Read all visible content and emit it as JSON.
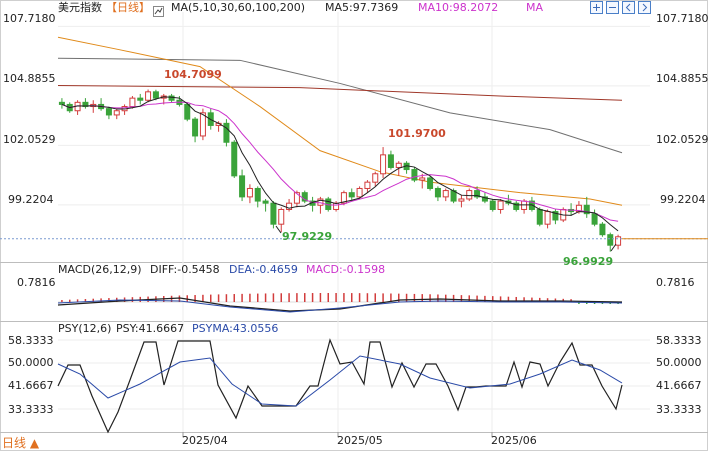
{
  "header": {
    "symbol": "美元指数",
    "period": "【日线】",
    "ma_label": "MA(5,10,30,60,100,200)",
    "ma5": "MA5:97.7369",
    "ma10": "MA10:98.2072",
    "ma_more": "MA"
  },
  "main_axis": {
    "left": [
      "107.7180",
      "104.8855",
      "102.0529",
      "99.2204"
    ],
    "right": [
      "107.7180",
      "104.8855",
      "102.0529",
      "99.2204"
    ]
  },
  "annotations": {
    "high1": "104.7099",
    "high2": "101.9700",
    "low1": "97.9229",
    "low2": "96.9929"
  },
  "macd": {
    "label": "MACD(26,12,9)",
    "diff": "DIFF:-0.5458",
    "dea": "DEA:-0.4659",
    "macd": "MACD:-0.1598",
    "axis": "0.7816"
  },
  "psy": {
    "label": "PSY(12,6)",
    "psy": "PSY:41.6667",
    "psyma": "PSYMA:43.0556",
    "axis": [
      "58.3333",
      "50.0000",
      "41.6667",
      "33.3333"
    ]
  },
  "xaxis": [
    "2025/04",
    "2025/05",
    "2025/06"
  ],
  "footer": {
    "period_selector": "日线 ▲"
  },
  "colors": {
    "up": "#d23c3c",
    "down": "#3aa33a",
    "ma5": "#222222",
    "ma10": "#cc33cc",
    "ma30": "#e08a1a",
    "ma60": "#a0382a",
    "ma100": "#707070",
    "diff_label": "#222222",
    "dea_label": "#2a4aa8",
    "macd_label": "#cc33cc",
    "psyma_label": "#2a4aa8"
  },
  "chart_data": {
    "type": "candlestick",
    "x": [
      "2025/04",
      "2025/05",
      "2025/06"
    ],
    "ylim": [
      96.5,
      108.4
    ],
    "annotated_highs": [
      104.7099,
      101.97
    ],
    "annotated_lows": [
      97.9229,
      96.9929
    ],
    "last_price_ma5": 97.7369,
    "last_ma10": 98.2072,
    "candles": [
      [
        104.1,
        104.3,
        103.8,
        104.0
      ],
      [
        104.0,
        104.1,
        103.6,
        103.7
      ],
      [
        103.7,
        104.2,
        103.5,
        104.1
      ],
      [
        104.1,
        104.3,
        103.8,
        103.9
      ],
      [
        103.9,
        104.2,
        103.6,
        104.0
      ],
      [
        104.0,
        104.3,
        103.7,
        103.8
      ],
      [
        103.8,
        103.9,
        103.3,
        103.5
      ],
      [
        103.5,
        103.8,
        103.3,
        103.7
      ],
      [
        103.7,
        104.0,
        103.5,
        103.9
      ],
      [
        103.9,
        104.4,
        103.8,
        104.3
      ],
      [
        104.3,
        104.5,
        104.0,
        104.2
      ],
      [
        104.2,
        104.71,
        104.1,
        104.6
      ],
      [
        104.6,
        104.7,
        104.2,
        104.3
      ],
      [
        104.3,
        104.5,
        104.0,
        104.4
      ],
      [
        104.4,
        104.5,
        104.1,
        104.2
      ],
      [
        104.2,
        104.4,
        103.9,
        104.0
      ],
      [
        104.0,
        104.1,
        103.2,
        103.3
      ],
      [
        103.3,
        103.4,
        102.2,
        102.5
      ],
      [
        102.5,
        103.8,
        102.3,
        103.6
      ],
      [
        103.6,
        103.8,
        102.8,
        103.0
      ],
      [
        103.0,
        103.2,
        102.7,
        103.1
      ],
      [
        103.1,
        103.3,
        102.0,
        102.2
      ],
      [
        102.2,
        102.3,
        100.5,
        100.6
      ],
      [
        100.6,
        100.9,
        99.4,
        99.6
      ],
      [
        99.6,
        100.2,
        99.3,
        100.0
      ],
      [
        100.0,
        100.1,
        99.1,
        99.4
      ],
      [
        99.4,
        99.5,
        98.9,
        99.3
      ],
      [
        99.3,
        99.4,
        98.1,
        98.3
      ],
      [
        98.3,
        99.1,
        97.92,
        99.0
      ],
      [
        99.0,
        99.5,
        98.9,
        99.3
      ],
      [
        99.3,
        99.9,
        99.1,
        99.8
      ],
      [
        99.8,
        99.9,
        99.3,
        99.4
      ],
      [
        99.4,
        99.6,
        98.9,
        99.2
      ],
      [
        99.2,
        99.6,
        98.8,
        99.5
      ],
      [
        99.5,
        99.6,
        98.9,
        99.0
      ],
      [
        99.0,
        99.4,
        98.9,
        99.3
      ],
      [
        99.3,
        99.9,
        99.2,
        99.8
      ],
      [
        99.8,
        100.0,
        99.4,
        99.6
      ],
      [
        99.6,
        100.1,
        99.5,
        100.0
      ],
      [
        100.0,
        100.4,
        99.8,
        100.3
      ],
      [
        100.3,
        100.8,
        100.1,
        100.7
      ],
      [
        100.7,
        101.97,
        100.5,
        101.6
      ],
      [
        101.6,
        101.8,
        100.9,
        101.0
      ],
      [
        101.0,
        101.3,
        100.6,
        101.2
      ],
      [
        101.2,
        101.3,
        100.7,
        100.9
      ],
      [
        100.9,
        101.0,
        100.3,
        100.4
      ],
      [
        100.4,
        100.7,
        100.0,
        100.5
      ],
      [
        100.5,
        100.6,
        99.9,
        100.0
      ],
      [
        100.0,
        100.1,
        99.4,
        99.6
      ],
      [
        99.6,
        100.0,
        99.4,
        99.9
      ],
      [
        99.9,
        100.0,
        99.3,
        99.4
      ],
      [
        99.4,
        99.7,
        99.1,
        99.5
      ],
      [
        99.5,
        100.0,
        99.4,
        99.9
      ],
      [
        99.9,
        100.1,
        99.5,
        99.6
      ],
      [
        99.6,
        99.8,
        99.3,
        99.4
      ],
      [
        99.4,
        99.5,
        98.9,
        99.0
      ],
      [
        99.0,
        99.5,
        98.8,
        99.4
      ],
      [
        99.4,
        99.7,
        99.2,
        99.3
      ],
      [
        99.3,
        99.4,
        98.9,
        99.0
      ],
      [
        99.0,
        99.5,
        98.8,
        99.4
      ],
      [
        99.4,
        99.6,
        98.9,
        99.0
      ],
      [
        99.0,
        99.1,
        98.2,
        98.3
      ],
      [
        98.3,
        99.0,
        98.1,
        98.9
      ],
      [
        98.9,
        99.0,
        98.3,
        98.5
      ],
      [
        98.5,
        99.1,
        98.4,
        99.0
      ],
      [
        99.0,
        99.3,
        98.7,
        98.9
      ],
      [
        98.9,
        99.4,
        98.8,
        99.2
      ],
      [
        99.2,
        99.6,
        98.6,
        98.8
      ],
      [
        98.8,
        99.0,
        98.2,
        98.3
      ],
      [
        98.3,
        98.4,
        97.7,
        97.8
      ],
      [
        97.8,
        97.9,
        96.99,
        97.3
      ],
      [
        97.3,
        97.8,
        97.1,
        97.7
      ]
    ]
  }
}
